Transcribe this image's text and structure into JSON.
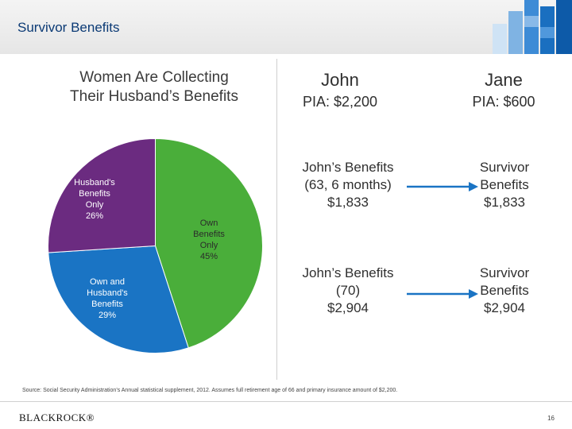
{
  "header": {
    "title": "Survivor Benefits"
  },
  "pie": {
    "title_line1": "Women Are Collecting",
    "title_line2": "Their Husband’s Benefits",
    "slices": [
      {
        "line1": "Own",
        "line2": "Benefits",
        "line3": "Only",
        "line4": "45%",
        "value": 45,
        "color": "#4aae3a"
      },
      {
        "line1": "Own and",
        "line2": "Husband's",
        "line3": "Benefits",
        "line4": "29%",
        "value": 29,
        "color": "#1a74c4"
      },
      {
        "line1": "Husband's",
        "line2": "Benefits",
        "line3": "Only",
        "line4": "26%",
        "value": 26,
        "color": "#6b2b80"
      }
    ]
  },
  "john": {
    "name": "John",
    "pia": "PIA: $2,200",
    "benefit1_line1": "John’s Benefits",
    "benefit1_line2": "(63, 6 months)",
    "benefit1_line3": "$1,833",
    "benefit2_line1": "John’s Benefits",
    "benefit2_line2": "(70)",
    "benefit2_line3": "$2,904"
  },
  "jane": {
    "name": "Jane",
    "pia": "PIA: $600",
    "benefit1_line1": "Survivor",
    "benefit1_line2": "Benefits",
    "benefit1_line3": "$1,833",
    "benefit2_line1": "Survivor",
    "benefit2_line2": "Benefits",
    "benefit2_line3": "$2,904"
  },
  "colors": {
    "title_blue": "#0b3a75",
    "arrow_blue": "#1a74c4",
    "green": "#4aae3a",
    "blue": "#1a74c4",
    "purple": "#6b2b80"
  },
  "footer": {
    "source": "Source: Social Security Administration’s Annual statistical supplement, 2012. Assumes full retirement age of 66 and primary insurance amount of $2,200.",
    "logo": "BLACKROCK®",
    "page": "16"
  }
}
